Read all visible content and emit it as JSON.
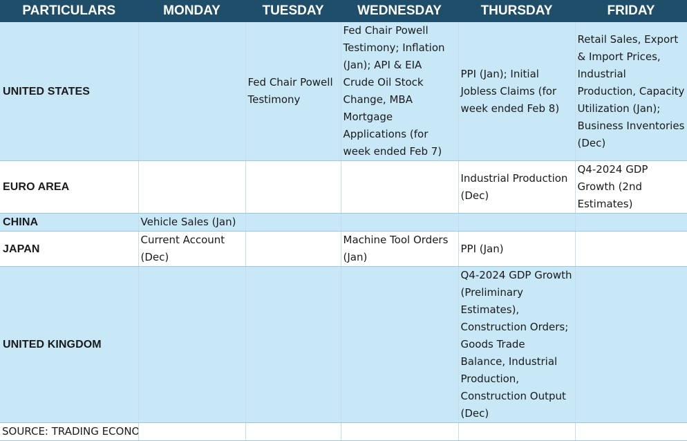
{
  "header": {
    "particulars": "PARTICULARS",
    "monday": "MONDAY",
    "tuesday": "TUESDAY",
    "wednesday": "WEDNESDAY",
    "thursday": "THURSDAY",
    "friday": "FRIDAY"
  },
  "rows": {
    "us": {
      "region": "UNITED STATES",
      "monday": "",
      "tuesday": "Fed Chair Powell Testimony",
      "wednesday": "Fed Chair Powell Testimony; Inflation (Jan); API & EIA Crude Oil Stock Change, MBA Mortgage Applications (for week ended Feb 7)",
      "thursday": "PPI (Jan); Initial Jobless Claims (for week ended Feb 8)",
      "friday": "Retail Sales, Export & Import Prices, Industrial Production, Capacity Utilization (Jan); Business Inventories (Dec)"
    },
    "ea": {
      "region": "EURO AREA",
      "monday": "",
      "tuesday": "",
      "wednesday": "",
      "thursday": "Industrial Production (Dec)",
      "friday": "Q4-2024 GDP Growth (2nd Estimates)"
    },
    "cn": {
      "region": "CHINA",
      "monday": "Vehicle Sales (Jan)",
      "tuesday": "",
      "wednesday": "",
      "thursday": "",
      "friday": ""
    },
    "jp": {
      "region": "JAPAN",
      "monday": "Current Account (Dec)",
      "tuesday": "",
      "wednesday": "Machine Tool Orders (Jan)",
      "thursday": "PPI (Jan)",
      "friday": ""
    },
    "uk": {
      "region": "UNITED KINGDOM",
      "monday": "",
      "tuesday": "",
      "wednesday": "",
      "thursday": "Q4-2024 GDP Growth (Preliminary Estimates), Construction Orders; Goods Trade Balance, Industrial Production, Construction Output (Dec)",
      "friday": ""
    }
  },
  "source": "SOURCE: TRADING ECONOMICS (as per IST)",
  "colors": {
    "header_bg": "#1f4e6b",
    "header_text": "#ffffff",
    "row_blue": "#c8e8f7",
    "row_white": "#ffffff"
  }
}
